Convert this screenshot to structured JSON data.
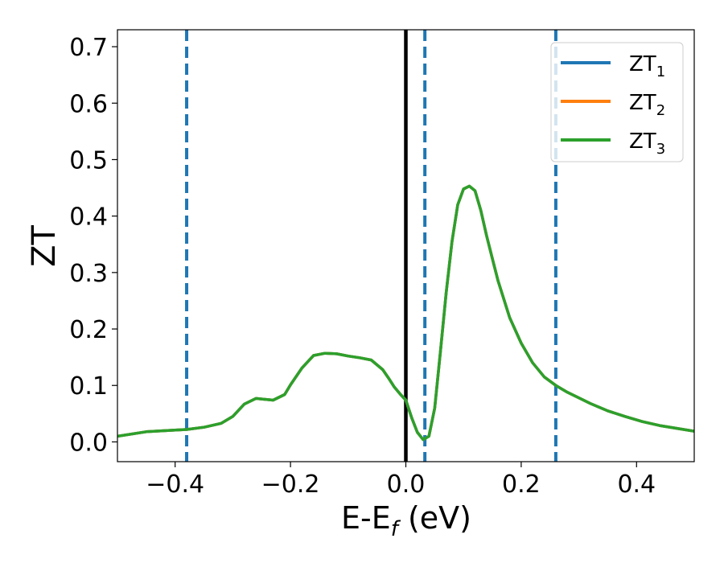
{
  "chart_data": {
    "type": "line",
    "xlabel": "E-E_f (eV)",
    "ylabel": "ZT",
    "xlim": [
      -0.5,
      0.5
    ],
    "ylim": [
      -0.035,
      0.73
    ],
    "x_ticks": [
      -0.4,
      -0.2,
      0.0,
      0.2,
      0.4
    ],
    "x_tick_labels": [
      "−0.4",
      "−0.2",
      "0.0",
      "0.2",
      "0.4"
    ],
    "y_ticks": [
      0.0,
      0.1,
      0.2,
      0.3,
      0.4,
      0.5,
      0.6,
      0.7
    ],
    "y_tick_labels": [
      "0.0",
      "0.1",
      "0.2",
      "0.3",
      "0.4",
      "0.5",
      "0.6",
      "0.7"
    ],
    "grid": false,
    "legend_position": "top-right",
    "vertical_lines": [
      {
        "x": -0.38,
        "style": "dashed",
        "color": "#1f77b4"
      },
      {
        "x": 0.0,
        "style": "solid",
        "color": "#000000"
      },
      {
        "x": 0.033,
        "style": "dashed",
        "color": "#1f77b4"
      },
      {
        "x": 0.26,
        "style": "dashed",
        "color": "#1f77b4"
      }
    ],
    "series": [
      {
        "name": "ZT",
        "subscript": "1",
        "color": "#1f77b4",
        "x": [
          -0.5,
          -0.45,
          -0.4,
          -0.38,
          -0.35,
          -0.32,
          -0.3,
          -0.28,
          -0.26,
          -0.25,
          -0.23,
          -0.21,
          -0.2,
          -0.18,
          -0.16,
          -0.14,
          -0.12,
          -0.1,
          -0.08,
          -0.06,
          -0.04,
          -0.03,
          -0.02,
          -0.01,
          0.0,
          0.01,
          0.02,
          0.03,
          0.04,
          0.05,
          0.06,
          0.07,
          0.08,
          0.09,
          0.1,
          0.11,
          0.12,
          0.13,
          0.14,
          0.15,
          0.16,
          0.18,
          0.2,
          0.22,
          0.24,
          0.26,
          0.28,
          0.3,
          0.32,
          0.35,
          0.38,
          0.41,
          0.44,
          0.47,
          0.5
        ],
        "y": [
          0.01,
          0.018,
          0.021,
          0.022,
          0.026,
          0.033,
          0.045,
          0.067,
          0.077,
          0.076,
          0.074,
          0.084,
          0.101,
          0.131,
          0.153,
          0.157,
          0.156,
          0.152,
          0.149,
          0.145,
          0.128,
          0.113,
          0.097,
          0.085,
          0.074,
          0.043,
          0.017,
          0.004,
          0.01,
          0.06,
          0.16,
          0.265,
          0.355,
          0.42,
          0.448,
          0.453,
          0.445,
          0.41,
          0.365,
          0.325,
          0.285,
          0.22,
          0.175,
          0.14,
          0.115,
          0.1,
          0.088,
          0.078,
          0.068,
          0.055,
          0.045,
          0.036,
          0.029,
          0.024,
          0.019
        ]
      },
      {
        "name": "ZT",
        "subscript": "2",
        "color": "#ff7f0e",
        "x": [
          -0.5,
          -0.45,
          -0.4,
          -0.38,
          -0.35,
          -0.32,
          -0.3,
          -0.28,
          -0.26,
          -0.25,
          -0.23,
          -0.21,
          -0.2,
          -0.18,
          -0.16,
          -0.14,
          -0.12,
          -0.1,
          -0.08,
          -0.06,
          -0.04,
          -0.03,
          -0.02,
          -0.01,
          0.0,
          0.01,
          0.02,
          0.03,
          0.04,
          0.05,
          0.06,
          0.07,
          0.08,
          0.09,
          0.1,
          0.11,
          0.12,
          0.13,
          0.14,
          0.15,
          0.16,
          0.18,
          0.2,
          0.22,
          0.24,
          0.26,
          0.28,
          0.3,
          0.32,
          0.35,
          0.38,
          0.41,
          0.44,
          0.47,
          0.5
        ],
        "y": [
          0.01,
          0.018,
          0.021,
          0.022,
          0.026,
          0.033,
          0.045,
          0.067,
          0.077,
          0.076,
          0.074,
          0.084,
          0.101,
          0.131,
          0.153,
          0.157,
          0.156,
          0.152,
          0.149,
          0.145,
          0.128,
          0.113,
          0.097,
          0.085,
          0.074,
          0.043,
          0.017,
          0.004,
          0.01,
          0.06,
          0.16,
          0.265,
          0.355,
          0.42,
          0.448,
          0.453,
          0.445,
          0.41,
          0.365,
          0.325,
          0.285,
          0.22,
          0.175,
          0.14,
          0.115,
          0.1,
          0.088,
          0.078,
          0.068,
          0.055,
          0.045,
          0.036,
          0.029,
          0.024,
          0.019
        ]
      },
      {
        "name": "ZT",
        "subscript": "3",
        "color": "#2ca02c",
        "x": [
          -0.5,
          -0.45,
          -0.4,
          -0.38,
          -0.35,
          -0.32,
          -0.3,
          -0.28,
          -0.26,
          -0.25,
          -0.23,
          -0.21,
          -0.2,
          -0.18,
          -0.16,
          -0.14,
          -0.12,
          -0.1,
          -0.08,
          -0.06,
          -0.04,
          -0.03,
          -0.02,
          -0.01,
          0.0,
          0.01,
          0.02,
          0.03,
          0.04,
          0.05,
          0.06,
          0.07,
          0.08,
          0.09,
          0.1,
          0.11,
          0.12,
          0.13,
          0.14,
          0.15,
          0.16,
          0.18,
          0.2,
          0.22,
          0.24,
          0.26,
          0.28,
          0.3,
          0.32,
          0.35,
          0.38,
          0.41,
          0.44,
          0.47,
          0.5
        ],
        "y": [
          0.01,
          0.018,
          0.021,
          0.022,
          0.026,
          0.033,
          0.045,
          0.067,
          0.077,
          0.076,
          0.074,
          0.084,
          0.101,
          0.131,
          0.153,
          0.157,
          0.156,
          0.152,
          0.149,
          0.145,
          0.128,
          0.113,
          0.097,
          0.085,
          0.074,
          0.043,
          0.017,
          0.004,
          0.01,
          0.06,
          0.16,
          0.265,
          0.355,
          0.42,
          0.448,
          0.453,
          0.445,
          0.41,
          0.365,
          0.325,
          0.285,
          0.22,
          0.175,
          0.14,
          0.115,
          0.1,
          0.088,
          0.078,
          0.068,
          0.055,
          0.045,
          0.036,
          0.029,
          0.024,
          0.019
        ]
      }
    ]
  }
}
